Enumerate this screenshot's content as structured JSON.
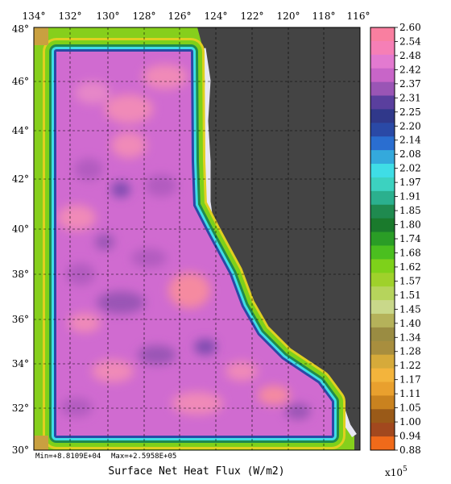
{
  "map": {
    "title": "Surface Net Heat Flux (W/m2)",
    "min_label": "Min=+8.8109E+04",
    "max_label": "Max=+2.5958E+05",
    "scale_label": "x10",
    "scale_exp": "5",
    "lon_labels": [
      "134°",
      "132°",
      "130°",
      "128°",
      "126°",
      "124°",
      "122°",
      "120°",
      "118°",
      "116°"
    ],
    "lat_labels": [
      "48°",
      "46°",
      "44°",
      "42°",
      "40°",
      "38°",
      "36°",
      "34°",
      "32°",
      "30°"
    ],
    "land_color": "#444444",
    "grid_on": true
  },
  "colorbar": {
    "labels": [
      "2.60",
      "2.54",
      "2.48",
      "2.42",
      "2.37",
      "2.31",
      "2.25",
      "2.20",
      "2.14",
      "2.08",
      "2.02",
      "1.97",
      "1.91",
      "1.85",
      "1.80",
      "1.74",
      "1.68",
      "1.62",
      "1.57",
      "1.51",
      "1.45",
      "1.40",
      "1.34",
      "1.28",
      "1.22",
      "1.17",
      "1.11",
      "1.05",
      "1.00",
      "0.94",
      "0.88"
    ],
    "colors": [
      "#f97fa0",
      "#f67fb6",
      "#e37ad0",
      "#c865c8",
      "#9a55b5",
      "#5a3f9e",
      "#30388a",
      "#2a49a6",
      "#2a6ed0",
      "#34a9dc",
      "#3fdde6",
      "#3cd2c0",
      "#2bb08e",
      "#1f8a4f",
      "#1a7a2c",
      "#2a9d26",
      "#4bbf1f",
      "#7ed11a",
      "#9fd12b",
      "#b6d45c",
      "#c9d88a",
      "#b5b25a",
      "#9a8c42",
      "#a88e3e",
      "#d6aa3a",
      "#f3b43c",
      "#e9a02e",
      "#c9821f",
      "#9a5a18",
      "#a2481e",
      "#f06a1a"
    ]
  }
}
